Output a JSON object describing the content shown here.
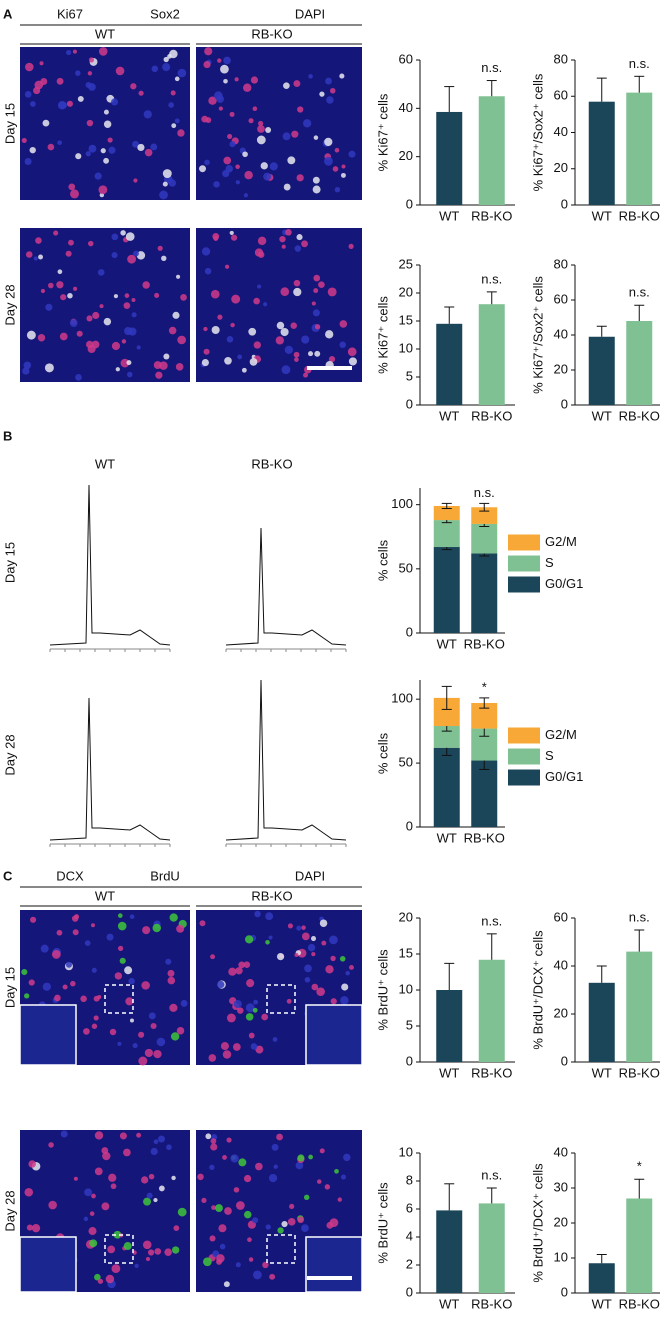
{
  "panels": [
    {
      "letter": "A",
      "stains": [
        {
          "text": "Ki67",
          "color": "#4cbb3c"
        },
        {
          "text": "Sox2",
          "color": "#e0303a"
        },
        {
          "text": "DAPI",
          "color": "#2a3fb0"
        }
      ],
      "columns": [
        "WT",
        "RB-KO"
      ],
      "rows": [
        "Day 15",
        "Day 28"
      ]
    },
    {
      "letter": "B",
      "columns": [
        "WT",
        "RB-KO"
      ],
      "rows": [
        "Day 15",
        "Day 28"
      ]
    },
    {
      "letter": "C",
      "stains": [
        {
          "text": "DCX",
          "color": "#4cbb3c"
        },
        {
          "text": "BrdU",
          "color": "#e0303a"
        },
        {
          "text": "DAPI",
          "color": "#2a3fb0"
        }
      ],
      "columns": [
        "WT",
        "RB-KO"
      ],
      "rows": [
        "Day 15",
        "Day 28"
      ]
    }
  ],
  "chart_data": [
    {
      "type": "bar",
      "ylabel": "% Ki67⁺ cells",
      "categories": [
        "WT",
        "RB-KO"
      ],
      "values": [
        38.5,
        45
      ],
      "errors": [
        10.5,
        6.5
      ],
      "colors": [
        "#1b4558",
        "#80c193"
      ],
      "ylim": [
        0,
        60
      ],
      "yticks": [
        0,
        20,
        40,
        60
      ],
      "annotation": "n.s."
    },
    {
      "type": "bar",
      "ylabel": "% Ki67⁺/Sox2⁺ cells",
      "categories": [
        "WT",
        "RB-KO"
      ],
      "values": [
        57,
        62
      ],
      "errors": [
        13,
        9
      ],
      "colors": [
        "#1b4558",
        "#80c193"
      ],
      "ylim": [
        0,
        80
      ],
      "yticks": [
        0,
        20,
        40,
        60,
        80
      ],
      "annotation": "n.s."
    },
    {
      "type": "bar",
      "ylabel": "% Ki67⁺ cells",
      "categories": [
        "WT",
        "RB-KO"
      ],
      "values": [
        14.5,
        18
      ],
      "errors": [
        3,
        2.2
      ],
      "colors": [
        "#1b4558",
        "#80c193"
      ],
      "ylim": [
        0,
        25
      ],
      "yticks": [
        0,
        5,
        10,
        15,
        20,
        25
      ],
      "annotation": "n.s."
    },
    {
      "type": "bar",
      "ylabel": "% Ki67⁺/Sox2⁺ cells",
      "categories": [
        "WT",
        "RB-KO"
      ],
      "values": [
        39,
        48
      ],
      "errors": [
        6,
        9
      ],
      "colors": [
        "#1b4558",
        "#80c193"
      ],
      "ylim": [
        0,
        80
      ],
      "yticks": [
        0,
        20,
        40,
        60,
        80
      ],
      "annotation": "n.s."
    },
    {
      "type": "stacked_bar",
      "ylabel": "% cells",
      "categories": [
        "WT",
        "RB-KO"
      ],
      "series": [
        {
          "name": "G0/G1",
          "color": "#1b4558",
          "values": [
            67,
            62
          ],
          "errors": [
            2,
            2
          ]
        },
        {
          "name": "S",
          "color": "#80c193",
          "values": [
            21,
            23
          ],
          "errors": [
            2,
            2
          ]
        },
        {
          "name": "G2/M",
          "color": "#f7a836",
          "values": [
            11,
            13
          ],
          "errors": [
            2,
            3
          ]
        }
      ],
      "ylim": [
        0,
        113
      ],
      "yticks": [
        0,
        50,
        100
      ],
      "annotation": "n.s."
    },
    {
      "type": "stacked_bar",
      "ylabel": "% cells",
      "categories": [
        "WT",
        "RB-KO"
      ],
      "series": [
        {
          "name": "G0/G1",
          "color": "#1b4558",
          "values": [
            62,
            52
          ],
          "errors": [
            6,
            7
          ]
        },
        {
          "name": "S",
          "color": "#80c193",
          "values": [
            17,
            25
          ],
          "errors": [
            4,
            6
          ]
        },
        {
          "name": "G2/M",
          "color": "#f7a836",
          "values": [
            22,
            20
          ],
          "errors": [
            9,
            4
          ]
        }
      ],
      "ylim": [
        0,
        115
      ],
      "yticks": [
        0,
        50,
        100
      ],
      "annotation": "*"
    },
    {
      "type": "bar",
      "ylabel": "% BrdU⁺ cells",
      "categories": [
        "WT",
        "RB-KO"
      ],
      "values": [
        10,
        14.2
      ],
      "errors": [
        3.7,
        3.6
      ],
      "colors": [
        "#1b4558",
        "#80c193"
      ],
      "ylim": [
        0,
        20
      ],
      "yticks": [
        0,
        5,
        10,
        15,
        20
      ],
      "annotation": "n.s."
    },
    {
      "type": "bar",
      "ylabel": "% BrdU⁺/DCX⁺ cells",
      "categories": [
        "WT",
        "RB-KO"
      ],
      "values": [
        33,
        46
      ],
      "errors": [
        7,
        9
      ],
      "colors": [
        "#1b4558",
        "#80c193"
      ],
      "ylim": [
        0,
        60
      ],
      "yticks": [
        0,
        20,
        40,
        60
      ],
      "annotation": "n.s."
    },
    {
      "type": "bar",
      "ylabel": "% BrdU⁺ cells",
      "categories": [
        "WT",
        "RB-KO"
      ],
      "values": [
        5.9,
        6.4
      ],
      "errors": [
        1.9,
        1.1
      ],
      "colors": [
        "#1b4558",
        "#80c193"
      ],
      "ylim": [
        0,
        10
      ],
      "yticks": [
        0,
        2,
        4,
        6,
        8,
        10
      ],
      "annotation": "n.s."
    },
    {
      "type": "bar",
      "ylabel": "% BrdU⁺/DCX⁺ cells",
      "categories": [
        "WT",
        "RB-KO"
      ],
      "values": [
        8.5,
        27
      ],
      "errors": [
        2.5,
        5.5
      ],
      "colors": [
        "#1b4558",
        "#80c193"
      ],
      "ylim": [
        0,
        40
      ],
      "yticks": [
        0,
        10,
        20,
        30,
        40
      ],
      "annotation": "*"
    }
  ]
}
